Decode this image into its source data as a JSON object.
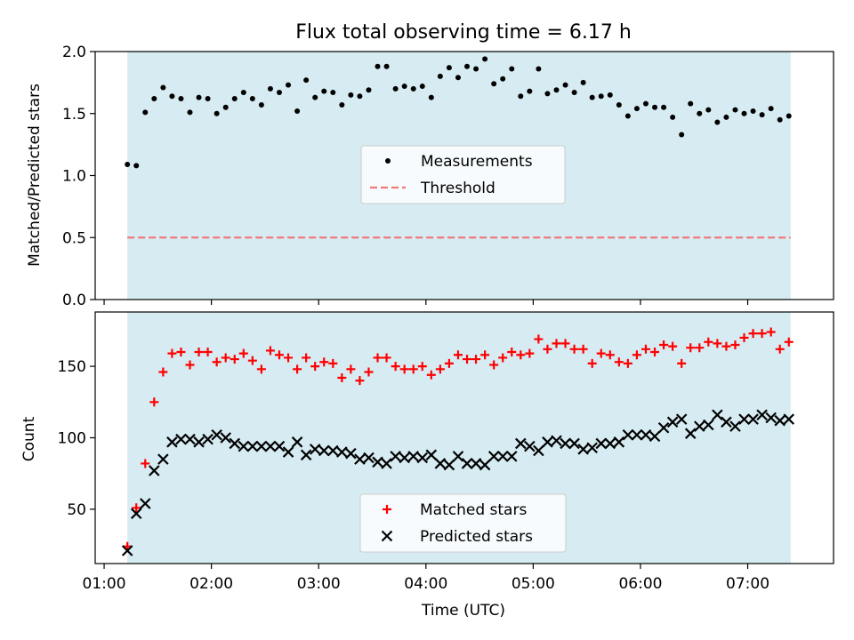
{
  "chart_data": [
    {
      "type": "scatter",
      "title": "Flux total observing time = 6.17 h",
      "xlabel": "",
      "ylabel": "Matched/Predicted stars",
      "xlim": [
        "00:55",
        "07:48"
      ],
      "ylim": [
        0.0,
        2.0
      ],
      "yticks": [
        "0.0",
        "0.5",
        "1.0",
        "1.5",
        "2.0"
      ],
      "shaded_span": [
        "01:13",
        "07:24"
      ],
      "series": [
        {
          "name": "Measurements",
          "marker": "dot",
          "color": "#000000",
          "points": [
            [
              "01:13",
              1.09
            ],
            [
              "01:18",
              1.08
            ],
            [
              "01:23",
              1.51
            ],
            [
              "01:28",
              1.62
            ],
            [
              "01:33",
              1.71
            ],
            [
              "01:38",
              1.64
            ],
            [
              "01:43",
              1.62
            ],
            [
              "01:48",
              1.51
            ],
            [
              "01:53",
              1.63
            ],
            [
              "01:58",
              1.62
            ],
            [
              "02:03",
              1.5
            ],
            [
              "02:08",
              1.55
            ],
            [
              "02:13",
              1.62
            ],
            [
              "02:18",
              1.67
            ],
            [
              "02:23",
              1.62
            ],
            [
              "02:28",
              1.57
            ],
            [
              "02:33",
              1.7
            ],
            [
              "02:38",
              1.67
            ],
            [
              "02:43",
              1.73
            ],
            [
              "02:48",
              1.52
            ],
            [
              "02:53",
              1.77
            ],
            [
              "02:58",
              1.63
            ],
            [
              "03:03",
              1.68
            ],
            [
              "03:08",
              1.67
            ],
            [
              "03:13",
              1.57
            ],
            [
              "03:18",
              1.65
            ],
            [
              "03:23",
              1.64
            ],
            [
              "03:28",
              1.69
            ],
            [
              "03:33",
              1.88
            ],
            [
              "03:38",
              1.88
            ],
            [
              "03:43",
              1.7
            ],
            [
              "03:48",
              1.72
            ],
            [
              "03:53",
              1.7
            ],
            [
              "03:58",
              1.72
            ],
            [
              "04:03",
              1.63
            ],
            [
              "04:08",
              1.8
            ],
            [
              "04:13",
              1.87
            ],
            [
              "04:18",
              1.79
            ],
            [
              "04:23",
              1.88
            ],
            [
              "04:28",
              1.86
            ],
            [
              "04:33",
              1.94
            ],
            [
              "04:38",
              1.74
            ],
            [
              "04:43",
              1.78
            ],
            [
              "04:48",
              1.86
            ],
            [
              "04:53",
              1.64
            ],
            [
              "04:58",
              1.68
            ],
            [
              "05:03",
              1.86
            ],
            [
              "05:08",
              1.66
            ],
            [
              "05:13",
              1.69
            ],
            [
              "05:18",
              1.73
            ],
            [
              "05:23",
              1.67
            ],
            [
              "05:28",
              1.75
            ],
            [
              "05:33",
              1.63
            ],
            [
              "05:38",
              1.64
            ],
            [
              "05:43",
              1.65
            ],
            [
              "05:48",
              1.57
            ],
            [
              "05:53",
              1.48
            ],
            [
              "05:58",
              1.54
            ],
            [
              "06:03",
              1.58
            ],
            [
              "06:08",
              1.55
            ],
            [
              "06:13",
              1.55
            ],
            [
              "06:18",
              1.47
            ],
            [
              "06:23",
              1.33
            ],
            [
              "06:28",
              1.58
            ],
            [
              "06:33",
              1.5
            ],
            [
              "06:38",
              1.53
            ],
            [
              "06:43",
              1.43
            ],
            [
              "06:48",
              1.47
            ],
            [
              "06:53",
              1.53
            ],
            [
              "06:58",
              1.5
            ],
            [
              "07:03",
              1.52
            ],
            [
              "07:08",
              1.49
            ],
            [
              "07:13",
              1.54
            ],
            [
              "07:18",
              1.45
            ],
            [
              "07:23",
              1.48
            ]
          ]
        },
        {
          "name": "Threshold",
          "marker": "dashed-line",
          "color": "#f07a7a",
          "points": [
            [
              "01:13",
              0.5
            ],
            [
              "07:24",
              0.5
            ]
          ]
        }
      ],
      "legend": {
        "placement": "center"
      },
      "grid": false
    },
    {
      "type": "scatter",
      "title": "",
      "xlabel": "Time (UTC)",
      "ylabel": "Count",
      "xlim": [
        "00:55",
        "07:48"
      ],
      "ylim": [
        12,
        188
      ],
      "yticks": [
        "50",
        "100",
        "150"
      ],
      "xticks": [
        "01:00",
        "02:00",
        "03:00",
        "04:00",
        "05:00",
        "06:00",
        "07:00"
      ],
      "shaded_span": [
        "01:13",
        "07:24"
      ],
      "series": [
        {
          "name": "Matched stars",
          "marker": "plus",
          "color": "#ff0000",
          "points": [
            [
              "01:13",
              24
            ],
            [
              "01:18",
              51
            ],
            [
              "01:23",
              82
            ],
            [
              "01:28",
              125
            ],
            [
              "01:33",
              146
            ],
            [
              "01:38",
              159
            ],
            [
              "01:43",
              160
            ],
            [
              "01:48",
              151
            ],
            [
              "01:53",
              160
            ],
            [
              "01:58",
              160
            ],
            [
              "02:03",
              153
            ],
            [
              "02:08",
              156
            ],
            [
              "02:13",
              155
            ],
            [
              "02:18",
              159
            ],
            [
              "02:23",
              154
            ],
            [
              "02:28",
              148
            ],
            [
              "02:33",
              161
            ],
            [
              "02:38",
              158
            ],
            [
              "02:43",
              156
            ],
            [
              "02:48",
              148
            ],
            [
              "02:53",
              156
            ],
            [
              "02:58",
              150
            ],
            [
              "03:03",
              153
            ],
            [
              "03:08",
              152
            ],
            [
              "03:13",
              142
            ],
            [
              "03:18",
              148
            ],
            [
              "03:23",
              140
            ],
            [
              "03:28",
              146
            ],
            [
              "03:33",
              156
            ],
            [
              "03:38",
              156
            ],
            [
              "03:43",
              150
            ],
            [
              "03:48",
              148
            ],
            [
              "03:53",
              148
            ],
            [
              "03:58",
              150
            ],
            [
              "04:03",
              144
            ],
            [
              "04:08",
              148
            ],
            [
              "04:13",
              152
            ],
            [
              "04:18",
              158
            ],
            [
              "04:23",
              155
            ],
            [
              "04:28",
              155
            ],
            [
              "04:33",
              158
            ],
            [
              "04:38",
              151
            ],
            [
              "04:43",
              156
            ],
            [
              "04:48",
              160
            ],
            [
              "04:53",
              158
            ],
            [
              "04:58",
              159
            ],
            [
              "05:03",
              169
            ],
            [
              "05:08",
              162
            ],
            [
              "05:13",
              166
            ],
            [
              "05:18",
              166
            ],
            [
              "05:23",
              162
            ],
            [
              "05:28",
              162
            ],
            [
              "05:33",
              152
            ],
            [
              "05:38",
              159
            ],
            [
              "05:43",
              158
            ],
            [
              "05:48",
              153
            ],
            [
              "05:53",
              152
            ],
            [
              "05:58",
              158
            ],
            [
              "06:03",
              162
            ],
            [
              "06:08",
              160
            ],
            [
              "06:13",
              165
            ],
            [
              "06:18",
              164
            ],
            [
              "06:23",
              152
            ],
            [
              "06:28",
              163
            ],
            [
              "06:33",
              163
            ],
            [
              "06:38",
              167
            ],
            [
              "06:43",
              166
            ],
            [
              "06:48",
              164
            ],
            [
              "06:53",
              165
            ],
            [
              "06:58",
              170
            ],
            [
              "07:03",
              173
            ],
            [
              "07:08",
              173
            ],
            [
              "07:13",
              174
            ],
            [
              "07:18",
              162
            ],
            [
              "07:23",
              167
            ]
          ]
        },
        {
          "name": "Predicted stars",
          "marker": "x",
          "color": "#000000",
          "points": [
            [
              "01:13",
              21
            ],
            [
              "01:18",
              47
            ],
            [
              "01:23",
              54
            ],
            [
              "01:28",
              77
            ],
            [
              "01:33",
              85
            ],
            [
              "01:38",
              97
            ],
            [
              "01:43",
              99
            ],
            [
              "01:48",
              99
            ],
            [
              "01:53",
              97
            ],
            [
              "01:58",
              99
            ],
            [
              "02:03",
              102
            ],
            [
              "02:08",
              100
            ],
            [
              "02:13",
              96
            ],
            [
              "02:18",
              94
            ],
            [
              "02:23",
              94
            ],
            [
              "02:28",
              94
            ],
            [
              "02:33",
              94
            ],
            [
              "02:38",
              94
            ],
            [
              "02:43",
              90
            ],
            [
              "02:48",
              97
            ],
            [
              "02:53",
              88
            ],
            [
              "02:58",
              92
            ],
            [
              "03:03",
              91
            ],
            [
              "03:08",
              91
            ],
            [
              "03:13",
              90
            ],
            [
              "03:18",
              89
            ],
            [
              "03:23",
              85
            ],
            [
              "03:28",
              86
            ],
            [
              "03:33",
              83
            ],
            [
              "03:38",
              82
            ],
            [
              "03:43",
              87
            ],
            [
              "03:48",
              86
            ],
            [
              "03:53",
              87
            ],
            [
              "03:58",
              86
            ],
            [
              "04:03",
              88
            ],
            [
              "04:08",
              82
            ],
            [
              "04:13",
              81
            ],
            [
              "04:18",
              87
            ],
            [
              "04:23",
              82
            ],
            [
              "04:28",
              82
            ],
            [
              "04:33",
              81
            ],
            [
              "04:38",
              87
            ],
            [
              "04:43",
              87
            ],
            [
              "04:48",
              87
            ],
            [
              "04:53",
              96
            ],
            [
              "04:58",
              94
            ],
            [
              "05:03",
              91
            ],
            [
              "05:08",
              97
            ],
            [
              "05:13",
              98
            ],
            [
              "05:18",
              96
            ],
            [
              "05:23",
              96
            ],
            [
              "05:28",
              92
            ],
            [
              "05:33",
              93
            ],
            [
              "05:38",
              96
            ],
            [
              "05:43",
              96
            ],
            [
              "05:48",
              97
            ],
            [
              "05:53",
              102
            ],
            [
              "05:58",
              102
            ],
            [
              "06:03",
              102
            ],
            [
              "06:08",
              101
            ],
            [
              "06:13",
              107
            ],
            [
              "06:18",
              111
            ],
            [
              "06:23",
              113
            ],
            [
              "06:28",
              103
            ],
            [
              "06:33",
              108
            ],
            [
              "06:38",
              109
            ],
            [
              "06:43",
              116
            ],
            [
              "06:48",
              111
            ],
            [
              "06:53",
              108
            ],
            [
              "06:58",
              113
            ],
            [
              "07:03",
              113
            ],
            [
              "07:08",
              116
            ],
            [
              "07:13",
              114
            ],
            [
              "07:18",
              112
            ],
            [
              "07:23",
              113
            ]
          ]
        }
      ],
      "legend": {
        "placement": "lower-center"
      },
      "grid": false
    }
  ],
  "colors": {
    "shaded_span": "#add8e6",
    "measurements": "#000000",
    "threshold": "#f07a7a",
    "matched": "#ff0000",
    "predicted": "#000000"
  }
}
